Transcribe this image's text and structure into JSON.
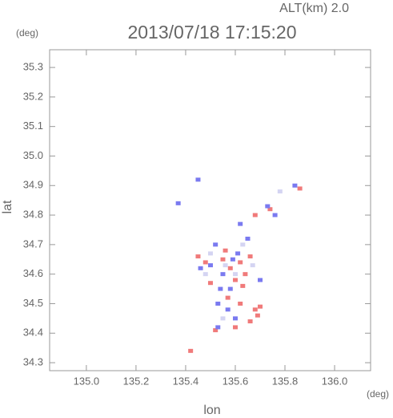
{
  "chart_data": {
    "type": "scatter",
    "title": "2013/07/18 17:15:20",
    "subtitle": "ALT(km) 2.0",
    "y_unit": "(deg)",
    "x_unit": "(deg)",
    "x_label": "lon",
    "y_label": "lat",
    "xlim": [
      134.852,
      136.145
    ],
    "ylim": [
      34.273,
      35.36
    ],
    "xticks": [
      {
        "value": 135,
        "label": "135.0"
      },
      135.2,
      135.4,
      135.6,
      135.8,
      {
        "value": 136,
        "label": "136.0"
      }
    ],
    "yticks": [
      34.3,
      34.4,
      34.5,
      34.6,
      34.7,
      34.8,
      34.9,
      {
        "value": 35,
        "label": "35.0"
      },
      35.1,
      35.2,
      35.3
    ],
    "series": [
      {
        "color": "#f07a7a",
        "x": [
          135.62,
          135.58,
          135.66,
          135.6,
          135.55,
          135.63,
          135.68,
          135.7,
          135.66,
          135.6,
          135.52,
          135.42,
          135.48,
          135.57,
          135.64,
          135.74,
          135.86,
          135.68,
          135.5,
          135.45,
          135.62,
          135.69,
          135.56
        ],
        "values": [
          34.64,
          34.62,
          34.66,
          34.58,
          34.65,
          34.56,
          34.48,
          34.49,
          34.44,
          34.42,
          34.41,
          34.34,
          34.64,
          34.52,
          34.6,
          34.82,
          34.89,
          34.8,
          34.57,
          34.66,
          34.5,
          34.46,
          34.68
        ]
      },
      {
        "color": "#7a7af0",
        "x": [
          135.52,
          135.55,
          135.58,
          135.5,
          135.61,
          135.57,
          135.53,
          135.65,
          135.76,
          135.73,
          135.62,
          135.6,
          135.46,
          135.54,
          135.59,
          135.45,
          135.84,
          135.7,
          135.37,
          135.53
        ],
        "values": [
          34.7,
          34.6,
          34.55,
          34.63,
          34.67,
          34.48,
          34.5,
          34.72,
          34.8,
          34.83,
          34.77,
          34.45,
          34.62,
          34.55,
          34.65,
          34.92,
          34.9,
          34.58,
          34.84,
          34.42
        ]
      },
      {
        "color": "#d4d4f2",
        "x": [
          135.5,
          135.56,
          135.63,
          135.67,
          135.6,
          135.55,
          135.78,
          135.48
        ],
        "values": [
          34.67,
          34.63,
          34.7,
          34.63,
          34.6,
          34.45,
          34.88,
          34.6
        ]
      }
    ]
  }
}
